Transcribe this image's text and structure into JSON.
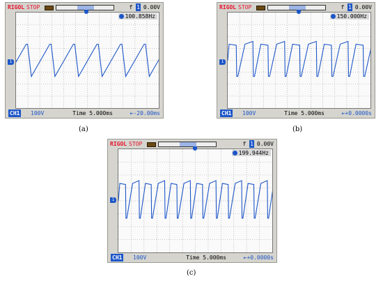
{
  "panels": [
    {
      "label": "(a)",
      "brand": "RIGOL",
      "state": "STOP",
      "trigger_symbol": "f",
      "trigger_channel": "1",
      "trigger_level": "0.00V",
      "frequency": "100.858Hz",
      "frequency_hz": 100.858,
      "channel_label": "CH1",
      "volts_per_div": "100V",
      "timebase": "Time 5.000ms",
      "offset": "⇤-20.00ms",
      "waveform": "sawtooth-rising"
    },
    {
      "label": "(b)",
      "brand": "RIGOL",
      "state": "STOP",
      "trigger_symbol": "f",
      "trigger_channel": "1",
      "trigger_level": "0.00V",
      "frequency": "150.000Hz",
      "frequency_hz": 150.0,
      "channel_label": "CH1",
      "volts_per_div": "100V",
      "timebase": "Time 5.000ms",
      "offset": "⇤+0.0000s",
      "waveform": "mixed-sawtooth-square"
    },
    {
      "label": "(c)",
      "brand": "RIGOL",
      "state": "STOP",
      "trigger_symbol": "f",
      "trigger_channel": "1",
      "trigger_level": "0.00V",
      "frequency": "199.944Hz",
      "frequency_hz": 199.944,
      "channel_label": "CH1",
      "volts_per_div": "100V",
      "timebase": "Time 5.000ms",
      "offset": "⇤+0.0000s",
      "waveform": "mixed-sawtooth-square"
    }
  ],
  "colors": {
    "trace": "#1d56c8",
    "brand": "#e8102a",
    "screen": "#fafafa",
    "bezel": "#d5d4ce"
  }
}
